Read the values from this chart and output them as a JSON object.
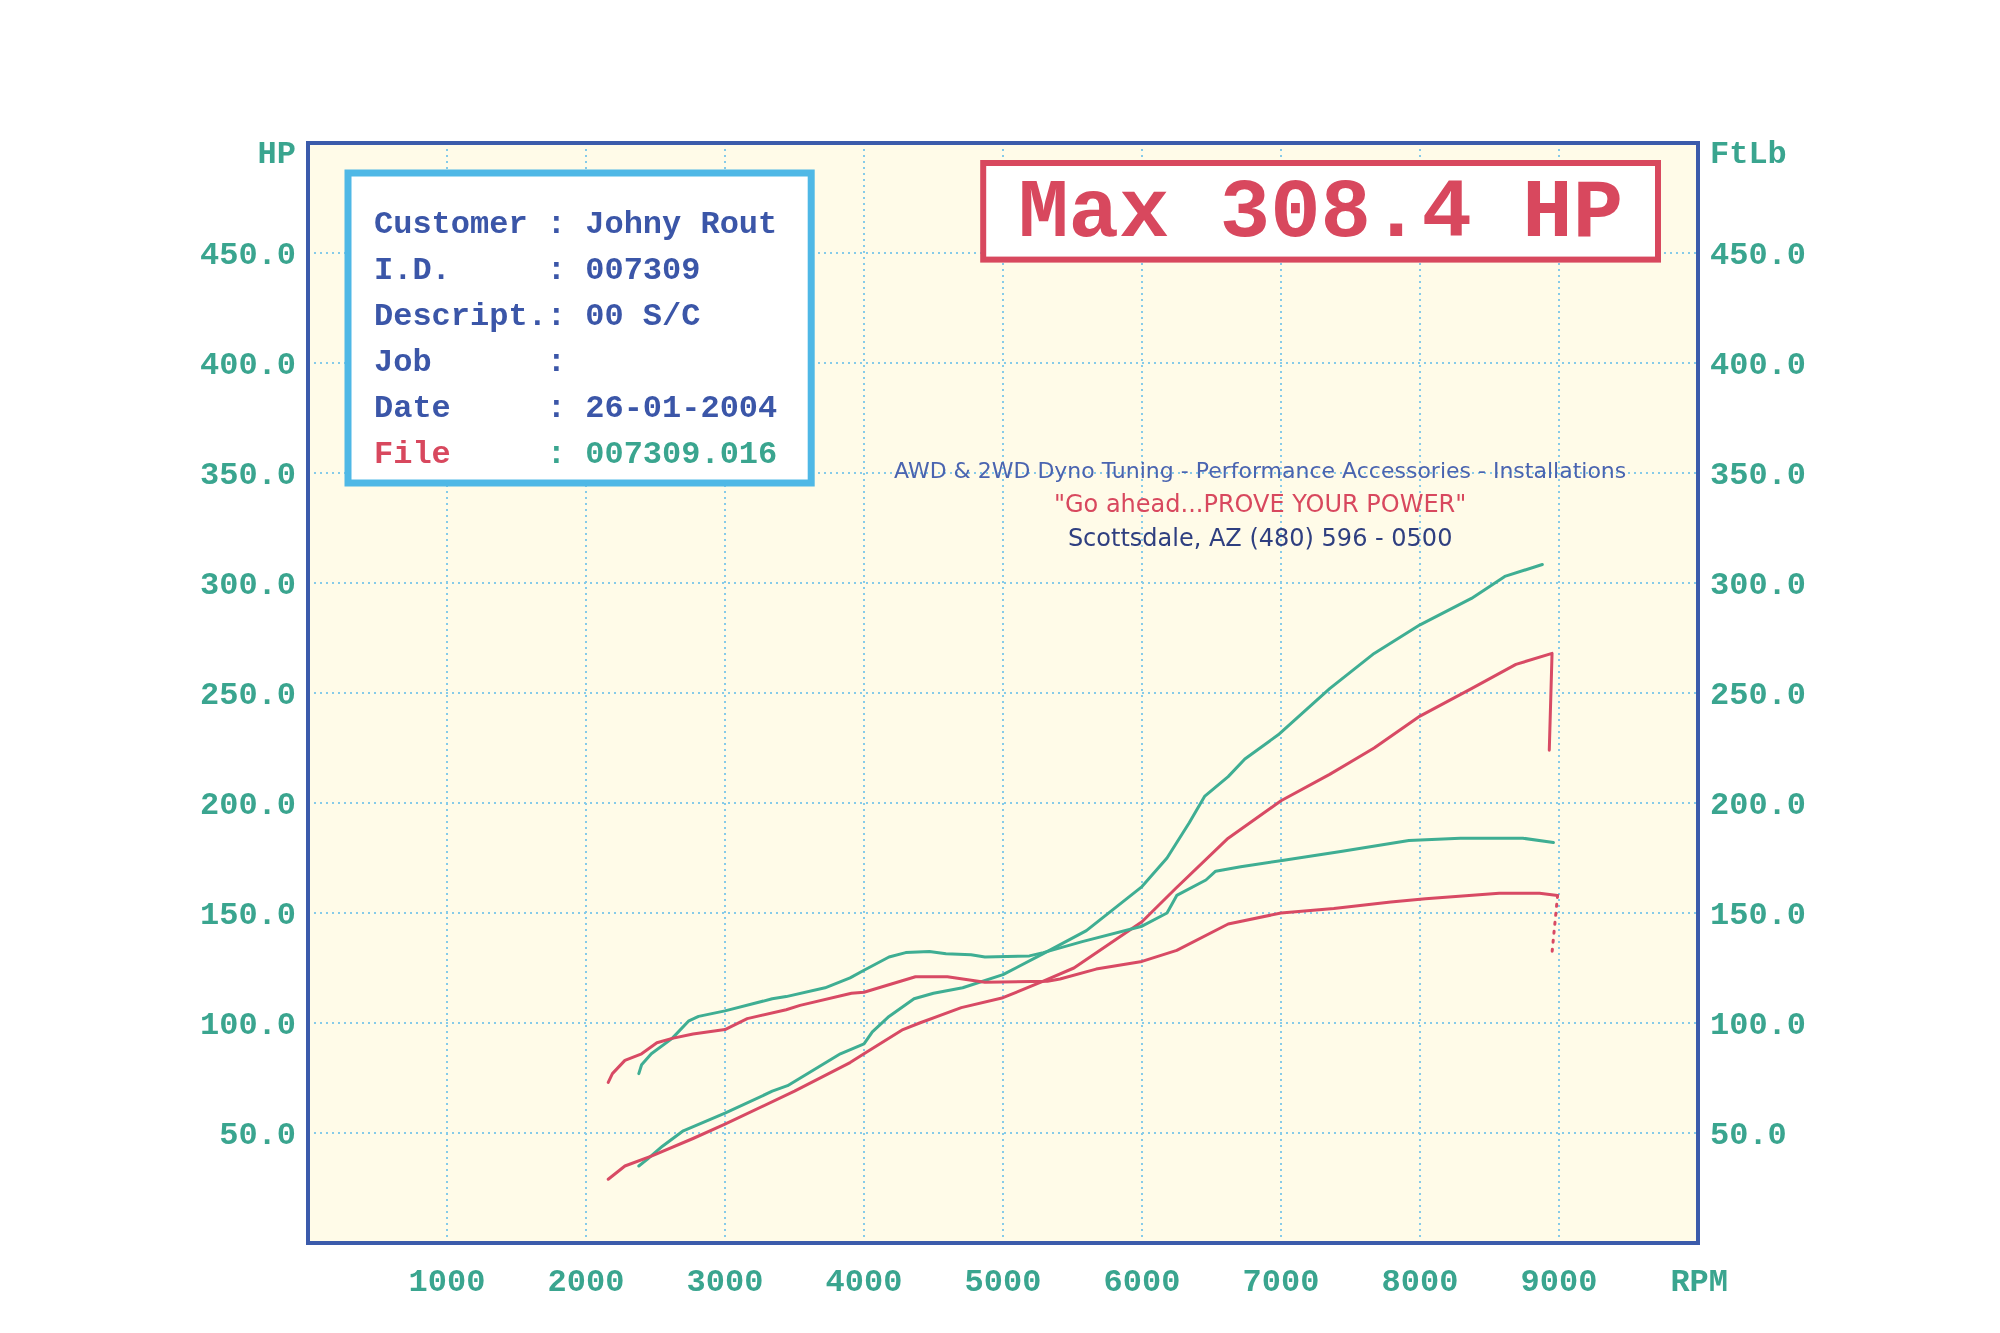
{
  "chart_data": {
    "type": "line",
    "title": "Max 308.4 HP",
    "xlabel": "RPM",
    "ylabel": "HP",
    "y2label": "FtLb",
    "annotations": [
      "Customer : Johny Rout",
      "I.D.     : 007309",
      "Descript.: 00 S/C",
      "Job      :",
      "Date     : 26-01-2004",
      "File     : 007309.016",
      "AWD & 2WD Dyno Tuning - Performance Accessories - Installations",
      "\"Go ahead...PROVE YOUR POWER\"",
      "Scottsdale, AZ (480) 596 - 0500"
    ],
    "xlim": [
      0,
      10000
    ],
    "xticks": [
      1000,
      2000,
      3000,
      4000,
      5000,
      6000,
      7000,
      8000,
      9000
    ],
    "ylim": [
      0,
      500
    ],
    "yticks": [
      {
        "value": 50,
        "label": "50.0"
      },
      {
        "value": 100,
        "label": "100.0"
      },
      {
        "value": 150,
        "label": "150.0"
      },
      {
        "value": 200,
        "label": "200.0"
      },
      {
        "value": 250,
        "label": "250.0"
      },
      {
        "value": 300,
        "label": "300.0"
      },
      {
        "value": 350,
        "label": "350.0"
      },
      {
        "value": 400,
        "label": "400.0"
      },
      {
        "value": 450,
        "label": "450.0"
      }
    ],
    "y2lim": [
      0,
      500
    ],
    "y2ticks": [
      {
        "value": 50,
        "label": "50.0"
      },
      {
        "value": 100,
        "label": "100.0"
      },
      {
        "value": 150,
        "label": "150.0"
      },
      {
        "value": 200,
        "label": "200.0"
      },
      {
        "value": 250,
        "label": "250.0"
      },
      {
        "value": 300,
        "label": "300.0"
      },
      {
        "value": 350,
        "label": "350.0"
      },
      {
        "value": 400,
        "label": "400.0"
      },
      {
        "value": 450,
        "label": "450.0"
      }
    ],
    "grid": true,
    "series": [
      {
        "color": "#3fae93",
        "x": [
          2380,
          2440,
          2550,
          2700,
          3000,
          3340,
          3450,
          3830,
          4000,
          4060,
          4180,
          4360,
          4500,
          4710,
          5000,
          5290,
          5600,
          6000,
          6180,
          6290,
          6340,
          6450,
          6620,
          6740,
          6980,
          7350,
          7670,
          8000,
          8370,
          8610,
          8880
        ],
        "values": [
          35,
          38,
          44,
          51,
          59,
          69,
          71.5,
          86,
          90.5,
          96,
          103,
          111,
          113.5,
          116,
          122,
          131.5,
          142,
          162,
          175,
          186,
          191,
          203,
          212,
          220,
          231,
          252,
          268,
          281,
          293,
          303,
          308.4
        ]
      },
      {
        "color": "#d84a64",
        "x": [
          2160,
          2280,
          2470,
          2770,
          3000,
          3500,
          3900,
          4000,
          4280,
          4400,
          4700,
          5000,
          5290,
          5510,
          6000,
          6240,
          6620,
          7000,
          7350,
          7670,
          8000,
          8370,
          8690,
          8950,
          8930
        ],
        "values": [
          29,
          35,
          39.5,
          47.5,
          54,
          69,
          82,
          86,
          97,
          100,
          107,
          111.5,
          119,
          125,
          146,
          161,
          184,
          201,
          213,
          225,
          239.5,
          252,
          263,
          268,
          224
        ]
      },
      {
        "color": "#3fae93",
        "x": [
          2380,
          2400,
          2470,
          2620,
          2740,
          2810,
          3000,
          3340,
          3440,
          3720,
          3900,
          4000,
          4180,
          4300,
          4470,
          4590,
          4770,
          4870,
          5190,
          5290,
          5570,
          6000,
          6180,
          6250,
          6460,
          6530,
          6710,
          7020,
          7430,
          7920,
          8290,
          8740,
          8960
        ],
        "values": [
          77,
          81,
          86,
          93,
          101,
          103,
          105.5,
          111,
          112,
          116,
          120.5,
          124,
          130,
          132,
          132.5,
          131.5,
          131,
          130,
          130.5,
          132,
          137,
          144,
          150,
          158,
          165,
          169,
          171,
          174,
          178,
          183,
          184,
          184,
          182
        ]
      },
      {
        "color": "#d84a64",
        "x": [
          2160,
          2190,
          2280,
          2400,
          2510,
          2620,
          2770,
          3000,
          3160,
          3440,
          3540,
          3910,
          4000,
          4370,
          4600,
          4870,
          5320,
          5410,
          5670,
          6000,
          6250,
          6620,
          7000,
          7380,
          7790,
          8040,
          8570,
          8860,
          8990
        ],
        "values": [
          73,
          77,
          83,
          86,
          91,
          93,
          95,
          97,
          102,
          106,
          108,
          113.5,
          114,
          121,
          121,
          118.5,
          119,
          120,
          124.5,
          128,
          133,
          145,
          150,
          152,
          155,
          156.5,
          159,
          159,
          158
        ]
      },
      {
        "color": "#d84a64",
        "line_style": "dotted",
        "x": [
          8990,
          8950
        ],
        "values": [
          158,
          132
        ]
      }
    ]
  }
}
